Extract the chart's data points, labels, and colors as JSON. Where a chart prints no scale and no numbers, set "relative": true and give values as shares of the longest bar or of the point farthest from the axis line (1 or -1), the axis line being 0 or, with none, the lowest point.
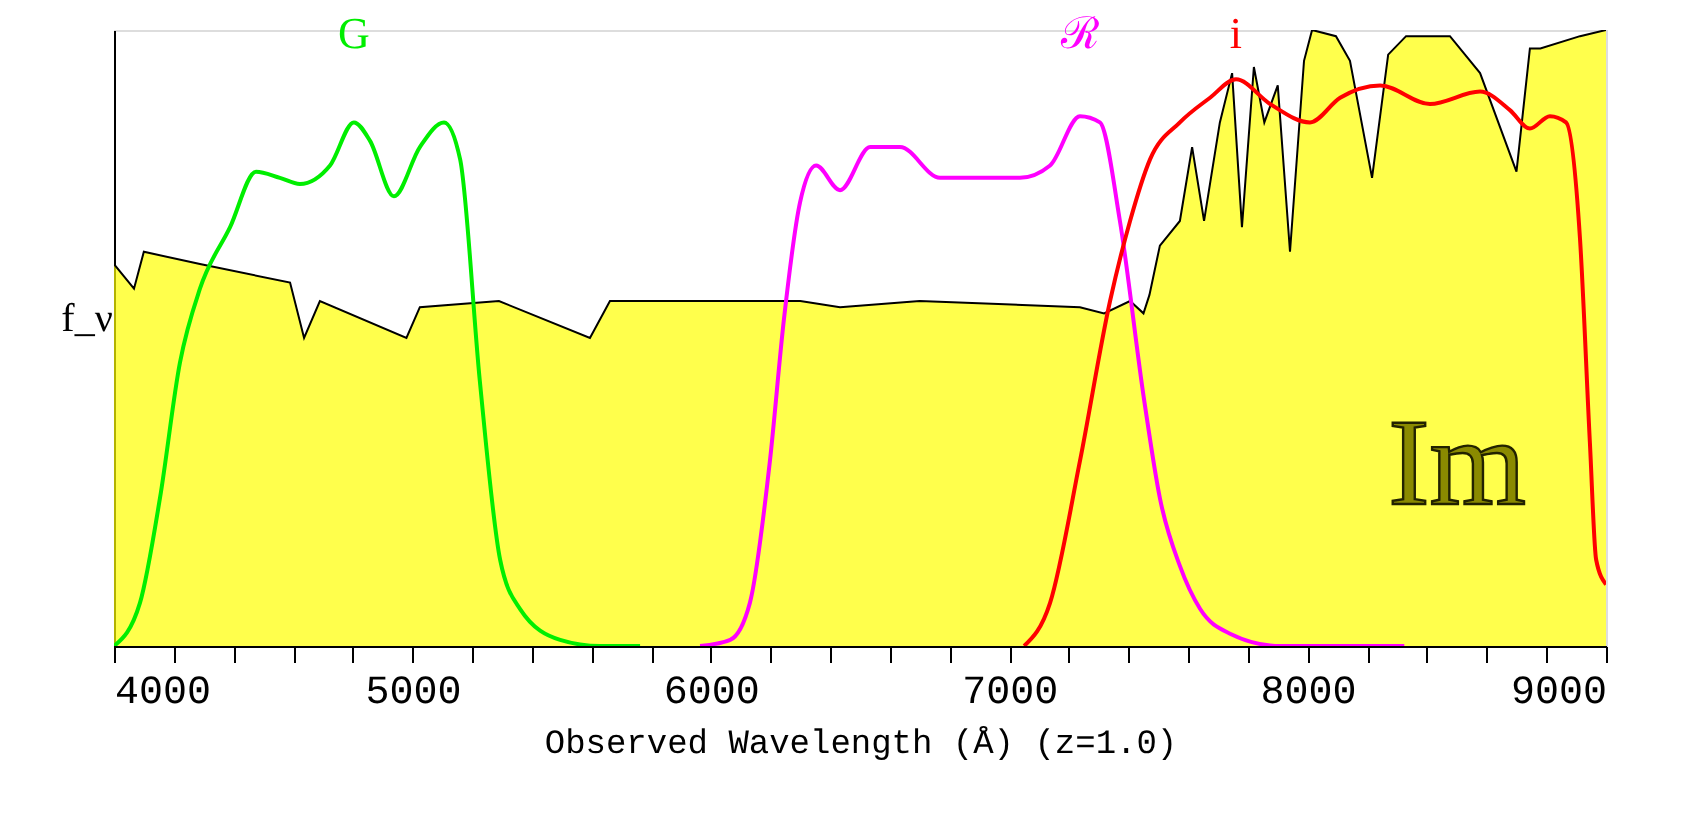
{
  "chart_data": {
    "type": "line",
    "relative": true,
    "xlabel": "Observed Wavelength (Å) (z=1.0)",
    "ylabel": "f_ν",
    "annotations": [
      "Im"
    ],
    "legend": false,
    "grid": false,
    "tick_labels": "x",
    "marker": "none",
    "xlim": [
      4000,
      9000
    ],
    "xticks": [
      4000,
      {
        "value": 4200,
        "label": null
      },
      {
        "value": 4400,
        "label": null
      },
      {
        "value": 4600,
        "label": null
      },
      {
        "value": 4800,
        "label": null
      },
      5000,
      {
        "value": 5200,
        "label": null
      },
      {
        "value": 5400,
        "label": null
      },
      {
        "value": 5600,
        "label": null
      },
      {
        "value": 5800,
        "label": null
      },
      6000,
      {
        "value": 6200,
        "label": null
      },
      {
        "value": 6400,
        "label": null
      },
      {
        "value": 6600,
        "label": null
      },
      {
        "value": 6800,
        "label": null
      },
      7000,
      {
        "value": 7200,
        "label": null
      },
      {
        "value": 7400,
        "label": null
      },
      {
        "value": 7600,
        "label": null
      },
      {
        "value": 7800,
        "label": null
      },
      8000,
      {
        "value": 8200,
        "label": null
      },
      {
        "value": 8400,
        "label": null
      },
      {
        "value": 8600,
        "label": null
      },
      {
        "value": 8800,
        "label": null
      },
      9000
    ],
    "series": [
      {
        "type": "area",
        "color": "#ffff00",
        "x": [
          4000,
          4067,
          4100,
          4288,
          4590,
          4637,
          4690,
          4980,
          5025,
          5290,
          5595,
          5662,
          6300,
          6433,
          6700,
          7237,
          7318,
          7405,
          7450,
          7470,
          7505,
          7572,
          7613,
          7653,
          7706,
          7747,
          7780,
          7820,
          7855,
          7900,
          7941,
          7988,
          8015,
          8095,
          8142,
          8216,
          8270,
          8330,
          8477,
          8578,
          8700,
          8745,
          8780,
          8913,
          9000
        ],
        "values": [
          0.62,
          0.58,
          0.64,
          0.62,
          0.59,
          0.5,
          0.56,
          0.5,
          0.55,
          0.56,
          0.5,
          0.56,
          0.56,
          0.55,
          0.56,
          0.55,
          0.54,
          0.56,
          0.54,
          0.57,
          0.65,
          0.69,
          0.81,
          0.69,
          0.85,
          0.93,
          0.68,
          0.94,
          0.85,
          0.91,
          0.64,
          0.95,
          1.0,
          0.99,
          0.95,
          0.76,
          0.96,
          0.99,
          0.99,
          0.93,
          0.77,
          0.97,
          0.97,
          0.99,
          1.0
        ]
      },
      {
        "name": "G",
        "type": "line",
        "color": "#00ee00",
        "x": [
          4000,
          4087,
          4154,
          4221,
          4288,
          4389,
          4476,
          4556,
          4623,
          4724,
          4804,
          4858,
          4938,
          5025,
          5106,
          5160,
          5226,
          5294,
          5361,
          5495,
          5629,
          5763
        ],
        "values": [
          0,
          0.07,
          0.24,
          0.46,
          0.58,
          0.68,
          0.77,
          0.76,
          0.75,
          0.78,
          0.85,
          0.82,
          0.73,
          0.81,
          0.85,
          0.79,
          0.43,
          0.14,
          0.06,
          0.01,
          0,
          0
        ]
      },
      {
        "name": "ℛ",
        "type": "line",
        "color": "#ff00ff",
        "x": [
          5964,
          6065,
          6131,
          6198,
          6245,
          6299,
          6353,
          6433,
          6534,
          6634,
          6768,
          7036,
          7137,
          7237,
          7304,
          7371,
          7452,
          7505,
          7572,
          7640,
          7740,
          7908,
          8324
        ],
        "values": [
          0,
          0.01,
          0.07,
          0.3,
          0.53,
          0.72,
          0.78,
          0.74,
          0.81,
          0.81,
          0.76,
          0.76,
          0.78,
          0.86,
          0.85,
          0.69,
          0.4,
          0.24,
          0.13,
          0.06,
          0.02,
          0,
          0
        ]
      },
      {
        "name": "i",
        "type": "line",
        "color": "#ff0000",
        "x": [
          7050,
          7137,
          7237,
          7338,
          7405,
          7472,
          7572,
          7673,
          7760,
          7874,
          8008,
          8109,
          8243,
          8410,
          8578,
          8678,
          8745,
          8812,
          8866,
          8913,
          8946,
          8967,
          9000
        ],
        "values": [
          0,
          0.07,
          0.3,
          0.56,
          0.69,
          0.79,
          0.85,
          0.89,
          0.92,
          0.88,
          0.85,
          0.89,
          0.91,
          0.88,
          0.9,
          0.87,
          0.84,
          0.86,
          0.85,
          0.66,
          0.33,
          0.14,
          0.1
        ]
      }
    ]
  }
}
